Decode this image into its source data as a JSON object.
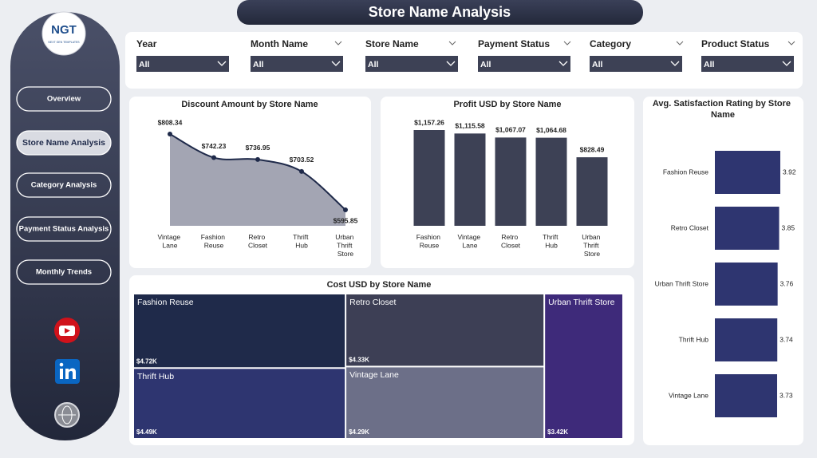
{
  "header": {
    "title": "Store Name Analysis"
  },
  "logo": {
    "text": "NGT",
    "tagline": "NEXT GEN TEMPLATES"
  },
  "nav": [
    "Overview",
    "Store Name Analysis",
    "Category Analysis",
    "Payment Status Analysis",
    "Monthly Trends"
  ],
  "filters": [
    {
      "label": "Year",
      "value": "All"
    },
    {
      "label": "Month Name",
      "value": "All"
    },
    {
      "label": "Store Name",
      "value": "All"
    },
    {
      "label": "Payment Status",
      "value": "All"
    },
    {
      "label": "Category",
      "value": "All"
    },
    {
      "label": "Product Status",
      "value": "All"
    }
  ],
  "chart_data": [
    {
      "type": "area",
      "title": "Discount Amount by Store Name",
      "categories": [
        "Vintage Lane",
        "Fashion Reuse",
        "Retro Closet",
        "Thrift Hub",
        "Urban Thrift Store"
      ],
      "values": [
        808.34,
        742.23,
        736.95,
        703.52,
        595.85
      ],
      "value_labels": [
        "$808.34",
        "$742.23",
        "$736.95",
        "$703.52",
        "$595.85"
      ],
      "color": "#a3a5b3",
      "line_color": "#1f2a4a"
    },
    {
      "type": "bar",
      "title": "Profit USD by Store Name",
      "categories": [
        "Fashion Reuse",
        "Vintage Lane",
        "Retro Closet",
        "Thrift Hub",
        "Urban Thrift Store"
      ],
      "values": [
        1157.26,
        1115.58,
        1067.07,
        1064.68,
        828.49
      ],
      "value_labels": [
        "$1,157.26",
        "$1,115.58",
        "$1,067.07",
        "$1,064.68",
        "$828.49"
      ],
      "color": "#3d4155"
    },
    {
      "type": "hbar",
      "title": "Avg. Satisfaction Rating by Store Name",
      "categories": [
        "Fashion Reuse",
        "Retro Closet",
        "Urban Thrift Store",
        "Thrift Hub",
        "Vintage Lane"
      ],
      "values": [
        3.92,
        3.85,
        3.76,
        3.74,
        3.73
      ],
      "color": "#2e3570"
    },
    {
      "type": "treemap",
      "title": "Cost USD by Store Name",
      "categories": [
        "Fashion Reuse",
        "Retro Closet",
        "Urban Thrift Store",
        "Thrift Hub",
        "Vintage Lane"
      ],
      "values": [
        4720,
        4330,
        3420,
        4490,
        4290
      ],
      "value_labels": [
        "$4.72K",
        "$4.33K",
        "$3.42K",
        "$4.49K",
        "$4.29K"
      ],
      "colors": [
        "#1f2a4a",
        "#3d3f55",
        "#3e2a7a",
        "#2e3570",
        "#6c6f88"
      ]
    }
  ]
}
